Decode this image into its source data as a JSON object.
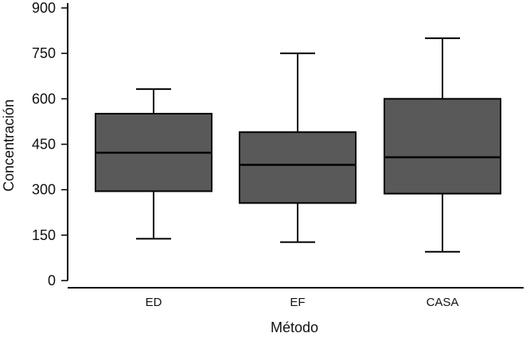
{
  "chart_data": {
    "type": "box",
    "xlabel": "Método",
    "ylabel": "Concentración",
    "ylim": [
      0,
      900
    ],
    "yticks": [
      0,
      150,
      300,
      450,
      600,
      750,
      900
    ],
    "categories": [
      "ED",
      "EF",
      "CASA"
    ],
    "boxes": [
      {
        "category": "ED",
        "whisker_low": 138,
        "q1": 295,
        "median": 422,
        "q3": 551,
        "whisker_high": 632
      },
      {
        "category": "EF",
        "whisker_low": 127,
        "q1": 256,
        "median": 382,
        "q3": 490,
        "whisker_high": 750
      },
      {
        "category": "CASA",
        "whisker_low": 95,
        "q1": 287,
        "median": 407,
        "q3": 600,
        "whisker_high": 800
      }
    ],
    "box_fill": "#595959",
    "line_color": "#000000",
    "grid": false
  }
}
